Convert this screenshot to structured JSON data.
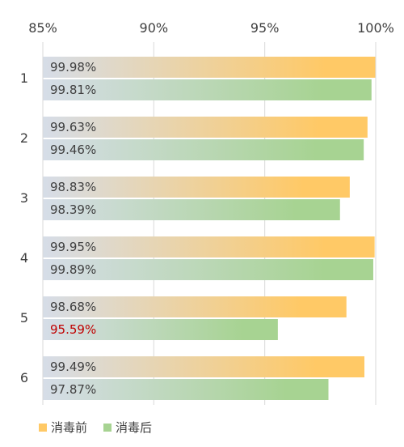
{
  "chart_data": {
    "type": "bar",
    "orientation": "horizontal",
    "categories": [
      "1",
      "2",
      "3",
      "4",
      "5",
      "6"
    ],
    "series": [
      {
        "name": "消毒前",
        "values": [
          99.98,
          99.63,
          98.83,
          99.95,
          98.68,
          99.49
        ],
        "color": "#ffc966"
      },
      {
        "name": "消毒后",
        "values": [
          99.81,
          99.46,
          98.39,
          99.89,
          95.59,
          97.87
        ],
        "color": "#a7d392"
      }
    ],
    "value_labels": {
      "消毒前": [
        "99.98%",
        "99.63%",
        "98.83%",
        "99.95%",
        "98.68%",
        "99.49%"
      ],
      "消毒后": [
        "99.81%",
        "99.46%",
        "98.39%",
        "99.89%",
        "95.59%",
        "97.87%"
      ]
    },
    "highlighted_labels": [
      {
        "series": "消毒后",
        "category": "5",
        "color": "#c00000"
      }
    ],
    "xlim": [
      85,
      100
    ],
    "x_ticks": [
      85,
      90,
      95,
      100
    ],
    "x_tick_labels": [
      "85%",
      "90%",
      "95%",
      "100%"
    ],
    "x_axis_position": "top",
    "bar_gradient_start": "#d6dde8",
    "grid": true,
    "legend_position": "bottom-left"
  }
}
